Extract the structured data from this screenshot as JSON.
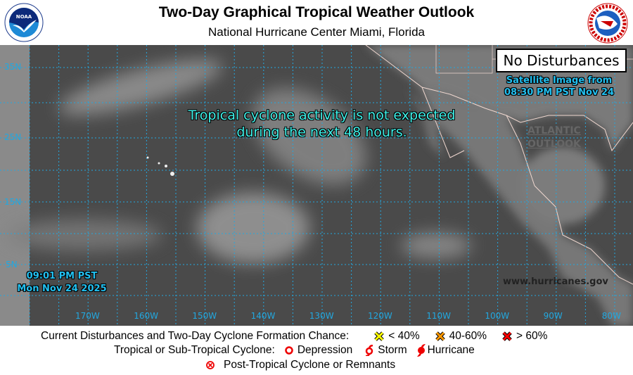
{
  "header": {
    "title": "Two-Day Graphical Tropical Weather Outlook",
    "subtitle": "National Hurricane Center  Miami, Florida",
    "left_logo": "NOAA",
    "right_logo": "NATIONAL WEATHER SERVICE"
  },
  "map": {
    "status_box": "No Disturbances",
    "message_line1": "Tropical cyclone activity is not expected",
    "message_line2": "during the next 48 hours.",
    "satellite_line1": "Satellite Image from",
    "satellite_line2": "08:30 PM PST Nov 24",
    "atlantic_link_line1": "ATLANTIC",
    "atlantic_link_line2": "OUTLOOK",
    "issued_time": "09:01 PM PST",
    "issued_date": "Mon Nov 24 2025",
    "website": "www.hurricanes.gov",
    "lat_labels": [
      "35N",
      "25N",
      "15N",
      "5N"
    ],
    "lon_labels": [
      "170W",
      "160W",
      "150W",
      "140W",
      "130W",
      "120W",
      "110W",
      "100W",
      "90W",
      "80W"
    ],
    "grid_color": "#22a8e0"
  },
  "legend": {
    "row1_label": "Current Disturbances and Two-Day Cyclone Formation Chance:",
    "low": "< 40%",
    "medium": "40-60%",
    "high": "> 60%",
    "low_color": "#ffff00",
    "medium_color": "#ff9900",
    "high_color": "#ff0000",
    "row2_label": "Tropical or Sub-Tropical Cyclone:",
    "depression": "Depression",
    "storm": "Storm",
    "hurricane": "Hurricane",
    "row3_label": "Post-Tropical Cyclone or Remnants"
  }
}
